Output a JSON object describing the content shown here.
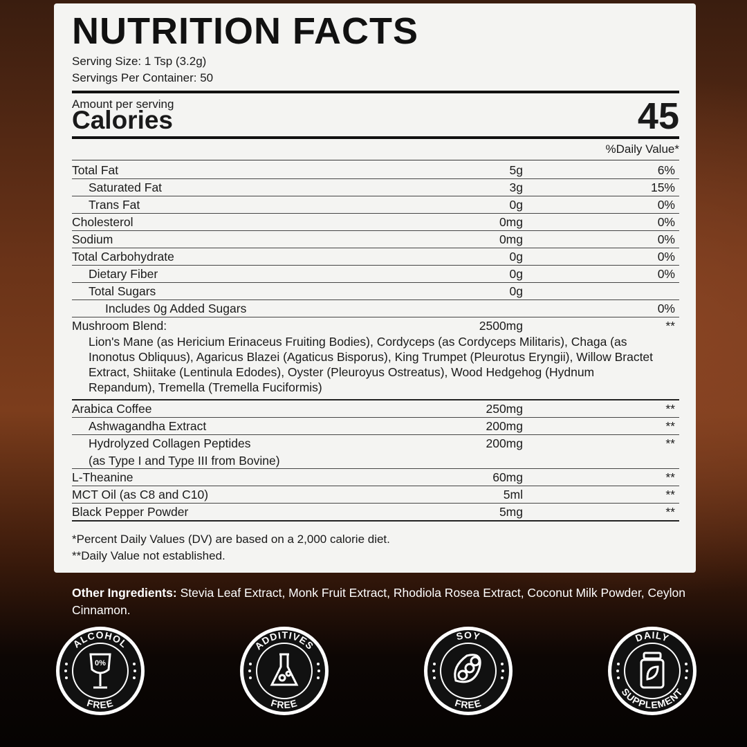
{
  "header": {
    "title": "NUTRITION FACTS",
    "serving_size": "Serving Size: 1 Tsp (3.2g)",
    "servings": "Servings Per Container: 50"
  },
  "calories": {
    "amount_label": "Amount per serving",
    "label": "Calories",
    "value": 45
  },
  "dv_header": "%Daily Value*",
  "nutrients": [
    {
      "name": "Total Fat",
      "amount": "5g",
      "dv": "6%"
    },
    {
      "name": "Saturated Fat",
      "amount": "3g",
      "dv": "15%"
    },
    {
      "name": "Trans Fat",
      "amount": "0g",
      "dv": "0%"
    },
    {
      "name": "Cholesterol",
      "amount": "0mg",
      "dv": "0%"
    },
    {
      "name": "Sodium",
      "amount": "0mg",
      "dv": "0%"
    },
    {
      "name": "Total Carbohydrate",
      "amount": "0g",
      "dv": "0%"
    },
    {
      "name": "Dietary Fiber",
      "amount": "0g",
      "dv": "0%"
    },
    {
      "name": "Total Sugars",
      "amount": "0g"
    },
    {
      "name": "Includes 0g Added Sugars",
      "dv": "0%"
    }
  ],
  "blend": {
    "name": "Mushroom Blend:",
    "amount": "2500mg",
    "dv": "**",
    "description": "Lion's Mane (as Hericium Erinaceus Fruiting Bodies), Cordyceps (as Cordyceps Militaris), Chaga (as Inonotus Obliquus), Agaricus Blazei (Agaticus Bisporus), King Trumpet (Pleurotus Eryngii), Willow Bractet Extract, Shiitake (Lentinula Edodes), Oyster (Pleuroyus Ostreatus), Wood Hedgehog (Hydnum Repandum), Tremella (Tremella Fuciformis)"
  },
  "supplements": [
    {
      "name": "Arabica Coffee",
      "amount": "250mg",
      "dv": "**"
    },
    {
      "name": "Ashwagandha Extract",
      "amount": "200mg",
      "dv": "**"
    },
    {
      "name": "Hydrolyzed Collagen Peptides",
      "amount": "200mg",
      "dv": "**",
      "note": "(as Type I and Type III from Bovine)"
    },
    {
      "name": "L-Theanine",
      "amount": "60mg",
      "dv": "**"
    },
    {
      "name": "MCT Oil (as C8 and C10)",
      "amount": "5ml",
      "dv": "**"
    },
    {
      "name": "Black Pepper Powder",
      "amount": "5mg",
      "dv": "**"
    }
  ],
  "footnotes": [
    "*Percent Daily Values (DV) are based on a 2,000 calorie diet.",
    "**Daily Value not established."
  ],
  "other_ingredients": {
    "label": "Other Ingredients:",
    "text": "Stevia Leaf Extract, Monk Fruit Extract, Rhodiola Rosea Extract, Coconut Milk Powder, Ceylon Cinnamon."
  },
  "badges": [
    {
      "top": "ALCOHOL",
      "bottom": "FREE",
      "icon_text": "0%"
    },
    {
      "top": "ADDITIVES",
      "bottom": "FREE"
    },
    {
      "top": "SOY",
      "bottom": "FREE"
    },
    {
      "top": "DAILY",
      "bottom": "SUPPLEMENT"
    }
  ]
}
